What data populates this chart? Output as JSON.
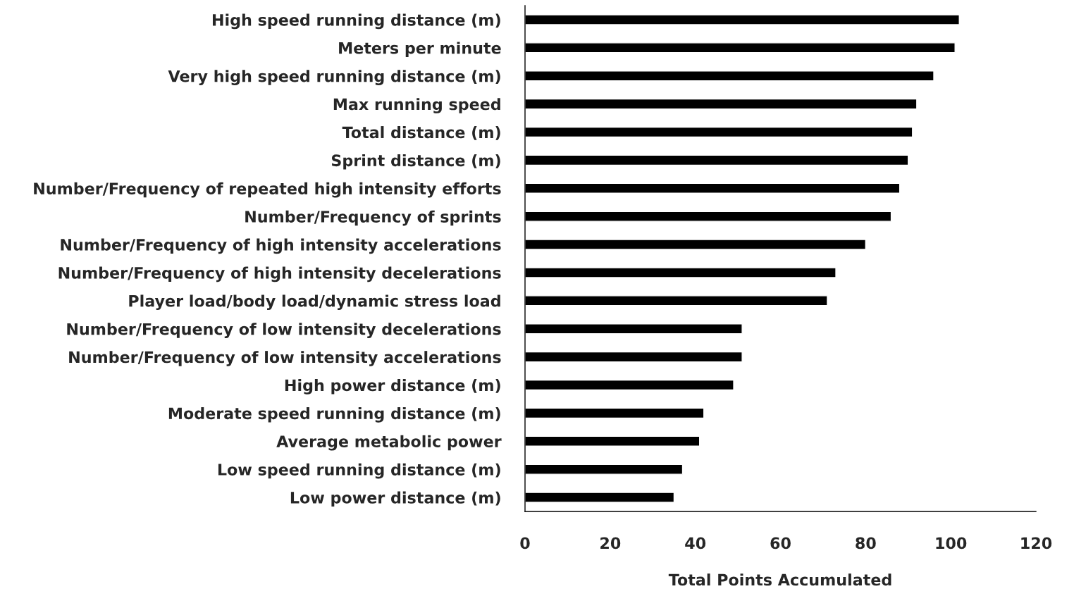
{
  "chart_data": {
    "type": "bar",
    "orientation": "horizontal",
    "xlabel": "Total Points Accumulated",
    "categories": [
      "High speed running distance (m)",
      "Meters per minute",
      "Very high speed running distance (m)",
      "Max running speed",
      "Total distance (m)",
      "Sprint distance (m)",
      "Number/Frequency of repeated high intensity efforts",
      "Number/Frequency of sprints",
      "Number/Frequency of high intensity accelerations",
      "Number/Frequency of high intensity decelerations",
      "Player load/body load/dynamic stress load",
      "Number/Frequency of low intensity decelerations",
      "Number/Frequency of low intensity accelerations",
      "High power distance (m)",
      "Moderate speed running distance (m)",
      "Average metabolic power",
      "Low speed running distance (m)",
      "Low power distance (m)"
    ],
    "values": [
      102,
      101,
      96,
      92,
      91,
      90,
      88,
      86,
      80,
      73,
      71,
      51,
      51,
      49,
      42,
      41,
      37,
      35
    ],
    "color": "#000000",
    "xlim": [
      0,
      120
    ],
    "xticks": [
      0,
      20,
      40,
      60,
      80,
      100,
      120
    ],
    "grid": false,
    "legend": false
  }
}
